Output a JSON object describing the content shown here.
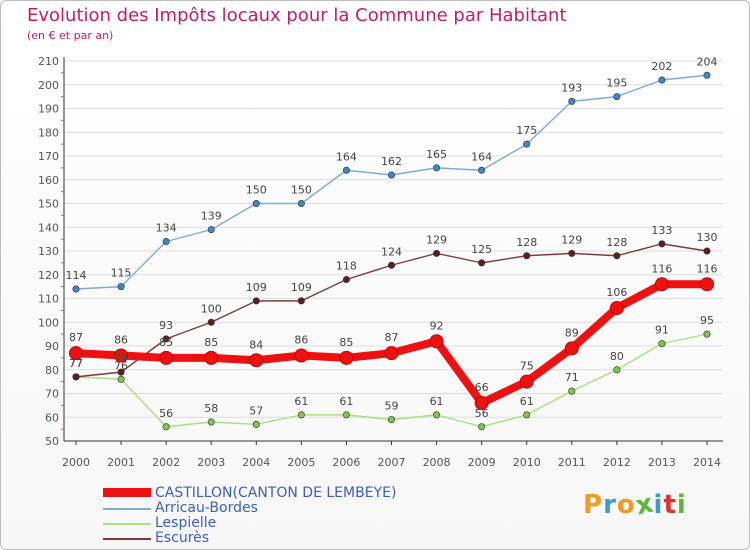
{
  "title": "Evolution des Impôts locaux pour la Commune par Habitant",
  "subtitle": "(en € et par an)",
  "logo": {
    "text": "Proxiti",
    "colors": [
      "#f59a1b",
      "#3a9bd7",
      "#f59a1b",
      "#5db83a",
      "#3a9bd7",
      "#e03030",
      "#5db83a"
    ]
  },
  "colors": {
    "title": "#c41b6b",
    "axis": "#555555",
    "grid": "#dddddd",
    "legend_text": "#3b5fbd"
  },
  "chart_data": {
    "type": "line",
    "title": "Evolution des Impôts locaux pour la Commune par Habitant",
    "subtitle": "(en € et par an)",
    "x": [
      "2000",
      "2001",
      "2002",
      "2003",
      "2004",
      "2005",
      "2006",
      "2007",
      "2008",
      "2009",
      "2010",
      "2011",
      "2012",
      "2013",
      "2014"
    ],
    "ylim": [
      50,
      210
    ],
    "yticks": [
      50,
      60,
      70,
      80,
      90,
      100,
      110,
      120,
      130,
      140,
      150,
      160,
      170,
      180,
      190,
      200,
      210
    ],
    "grid": "horizontal",
    "legend_position": "bottom-left",
    "series": [
      {
        "name": "CASTILLON(CANTON DE LEMBEYE)",
        "color": "#ee1111",
        "point_color": "#ee1111",
        "values": [
          87,
          86,
          85,
          85,
          84,
          86,
          85,
          87,
          92,
          66,
          75,
          89,
          106,
          116,
          116
        ]
      },
      {
        "name": "Arricau-Bordes",
        "color": "#7ea9dc",
        "point_color": "#3f87c9",
        "values": [
          114,
          115,
          134,
          139,
          150,
          150,
          164,
          162,
          165,
          164,
          175,
          193,
          195,
          202,
          204
        ]
      },
      {
        "name": "Lespielle",
        "color": "#a8df80",
        "point_color": "#7cc847",
        "values": [
          77,
          76,
          56,
          58,
          57,
          61,
          61,
          59,
          61,
          56,
          61,
          71,
          80,
          91,
          95
        ]
      },
      {
        "name": "Escurès",
        "color": "#7a3a3a",
        "point_color": "#5a2020",
        "values": [
          77,
          79,
          93,
          100,
          109,
          109,
          118,
          124,
          129,
          125,
          128,
          129,
          128,
          133,
          130
        ]
      }
    ]
  }
}
